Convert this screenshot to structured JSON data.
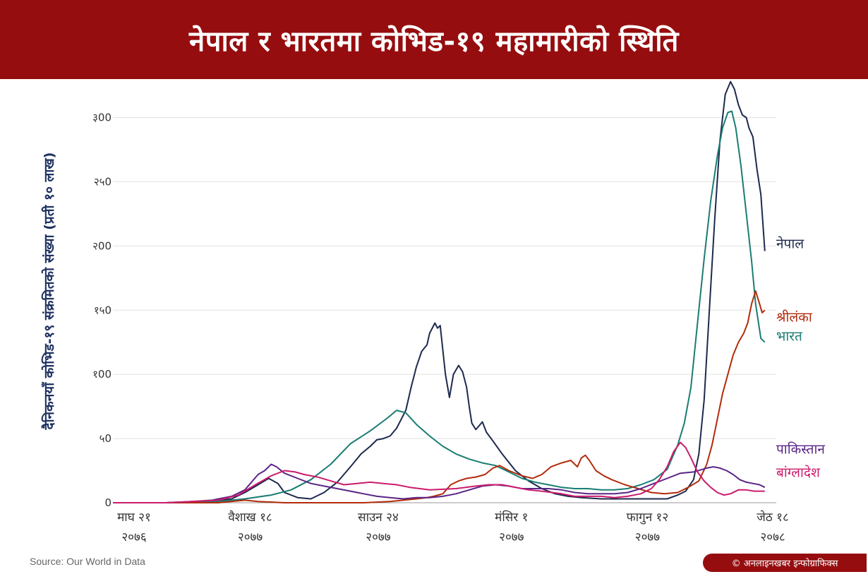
{
  "header": {
    "title": "नेपाल र भारतमा कोभिड-१९ महामारीको स्थिति"
  },
  "footer": {
    "source": "Source: Our World in Data",
    "credit": "© अनलाइनखबर इन्फोग्राफिक्स"
  },
  "chart_data": {
    "type": "line",
    "ylabel": "दैनिकनयाँ कोभिड-१९ संक्रमितको संख्या (प्रती १० लाख)",
    "ylim": [
      0,
      330
    ],
    "y_ticks": [
      {
        "value": 0,
        "label": "0"
      },
      {
        "value": 50,
        "label": "५0"
      },
      {
        "value": 100,
        "label": "१00"
      },
      {
        "value": 150,
        "label": "१५0"
      },
      {
        "value": 200,
        "label": "२00"
      },
      {
        "value": 250,
        "label": "२५0"
      },
      {
        "value": 300,
        "label": "३00"
      }
    ],
    "grid": true,
    "xlim": [
      0,
      500
    ],
    "x_ticks": [
      {
        "x": 0,
        "line1": "माघ २१",
        "line2": "२०७६"
      },
      {
        "x": 88,
        "line1": "वैशाख १८",
        "line2": "२०७७"
      },
      {
        "x": 185,
        "line1": "साउन २४",
        "line2": "२०७७"
      },
      {
        "x": 286,
        "line1": "मंसिर १",
        "line2": "२०७७"
      },
      {
        "x": 389,
        "line1": "फागुन १२",
        "line2": "२०७७"
      },
      {
        "x": 484,
        "line1": "जेठ १८",
        "line2": "२०७८"
      }
    ],
    "colors": {
      "nepal": "#1d2a4d",
      "india": "#1a7d72",
      "srilanka": "#b22c0c",
      "pakistan": "#5b2587",
      "bangladesh": "#cc1b6c"
    },
    "series": [
      {
        "key": "nepal",
        "name": "नेपाल",
        "label_pos": [
          513,
          202
        ],
        "points": [
          [
            0,
            0
          ],
          [
            40,
            0
          ],
          [
            70,
            1
          ],
          [
            90,
            3
          ],
          [
            100,
            8
          ],
          [
            110,
            14
          ],
          [
            118,
            19
          ],
          [
            125,
            15
          ],
          [
            130,
            8
          ],
          [
            140,
            4
          ],
          [
            150,
            3
          ],
          [
            160,
            8
          ],
          [
            170,
            16
          ],
          [
            180,
            28
          ],
          [
            188,
            38
          ],
          [
            195,
            44
          ],
          [
            200,
            49
          ],
          [
            205,
            50
          ],
          [
            210,
            52
          ],
          [
            215,
            58
          ],
          [
            222,
            72
          ],
          [
            226,
            90
          ],
          [
            230,
            106
          ],
          [
            234,
            118
          ],
          [
            238,
            123
          ],
          [
            240,
            132
          ],
          [
            244,
            140
          ],
          [
            246,
            136
          ],
          [
            248,
            138
          ],
          [
            252,
            100
          ],
          [
            255,
            82
          ],
          [
            258,
            100
          ],
          [
            262,
            107
          ],
          [
            265,
            102
          ],
          [
            268,
            90
          ],
          [
            270,
            75
          ],
          [
            272,
            62
          ],
          [
            275,
            57
          ],
          [
            280,
            63
          ],
          [
            283,
            55
          ],
          [
            288,
            48
          ],
          [
            295,
            38
          ],
          [
            305,
            25
          ],
          [
            315,
            17
          ],
          [
            325,
            11
          ],
          [
            335,
            7
          ],
          [
            345,
            5
          ],
          [
            355,
            4
          ],
          [
            370,
            3
          ],
          [
            385,
            3
          ],
          [
            400,
            3
          ],
          [
            410,
            3
          ],
          [
            420,
            3
          ],
          [
            428,
            6
          ],
          [
            434,
            9
          ],
          [
            440,
            18
          ],
          [
            444,
            38
          ],
          [
            448,
            80
          ],
          [
            452,
            150
          ],
          [
            456,
            220
          ],
          [
            460,
            282
          ],
          [
            464,
            318
          ],
          [
            468,
            328
          ],
          [
            471,
            322
          ],
          [
            474,
            310
          ],
          [
            477,
            302
          ],
          [
            480,
            300
          ],
          [
            482,
            292
          ],
          [
            485,
            285
          ],
          [
            488,
            260
          ],
          [
            491,
            240
          ],
          [
            494,
            196
          ]
        ]
      },
      {
        "key": "india",
        "name": "भारत",
        "label_pos": [
          513,
          130
        ],
        "points": [
          [
            0,
            0
          ],
          [
            50,
            0
          ],
          [
            80,
            1
          ],
          [
            100,
            3
          ],
          [
            120,
            6
          ],
          [
            135,
            10
          ],
          [
            150,
            18
          ],
          [
            165,
            30
          ],
          [
            180,
            46
          ],
          [
            195,
            56
          ],
          [
            208,
            66
          ],
          [
            215,
            72
          ],
          [
            222,
            70
          ],
          [
            230,
            61
          ],
          [
            240,
            52
          ],
          [
            250,
            44
          ],
          [
            260,
            38
          ],
          [
            270,
            34
          ],
          [
            280,
            31
          ],
          [
            290,
            29
          ],
          [
            300,
            24
          ],
          [
            310,
            19
          ],
          [
            320,
            16
          ],
          [
            330,
            14
          ],
          [
            340,
            12
          ],
          [
            350,
            11
          ],
          [
            360,
            11
          ],
          [
            370,
            10
          ],
          [
            380,
            10
          ],
          [
            390,
            11
          ],
          [
            400,
            14
          ],
          [
            410,
            18
          ],
          [
            420,
            26
          ],
          [
            428,
            45
          ],
          [
            433,
            62
          ],
          [
            438,
            90
          ],
          [
            443,
            140
          ],
          [
            448,
            190
          ],
          [
            453,
            235
          ],
          [
            458,
            270
          ],
          [
            462,
            292
          ],
          [
            466,
            304
          ],
          [
            469,
            305
          ],
          [
            472,
            292
          ],
          [
            476,
            262
          ],
          [
            480,
            225
          ],
          [
            484,
            188
          ],
          [
            487,
            155
          ],
          [
            491,
            128
          ],
          [
            494,
            125
          ]
        ]
      },
      {
        "key": "srilanka",
        "name": "श्रीलंका",
        "label_pos": [
          513,
          145
        ],
        "points": [
          [
            0,
            0
          ],
          [
            80,
            0
          ],
          [
            100,
            2
          ],
          [
            110,
            1
          ],
          [
            130,
            0
          ],
          [
            150,
            0
          ],
          [
            170,
            0
          ],
          [
            190,
            0
          ],
          [
            210,
            1
          ],
          [
            230,
            3
          ],
          [
            238,
            4
          ],
          [
            243,
            5
          ],
          [
            250,
            7
          ],
          [
            256,
            14
          ],
          [
            262,
            17
          ],
          [
            268,
            19
          ],
          [
            275,
            20
          ],
          [
            282,
            22
          ],
          [
            288,
            27
          ],
          [
            293,
            29
          ],
          [
            300,
            25
          ],
          [
            310,
            21
          ],
          [
            318,
            19
          ],
          [
            325,
            22
          ],
          [
            332,
            28
          ],
          [
            340,
            31
          ],
          [
            347,
            33
          ],
          [
            352,
            28
          ],
          [
            355,
            35
          ],
          [
            358,
            37
          ],
          [
            361,
            33
          ],
          [
            366,
            25
          ],
          [
            372,
            21
          ],
          [
            378,
            18
          ],
          [
            388,
            14
          ],
          [
            398,
            11
          ],
          [
            408,
            8
          ],
          [
            418,
            7
          ],
          [
            428,
            8
          ],
          [
            436,
            12
          ],
          [
            444,
            17
          ],
          [
            450,
            30
          ],
          [
            454,
            45
          ],
          [
            458,
            65
          ],
          [
            462,
            85
          ],
          [
            466,
            100
          ],
          [
            470,
            115
          ],
          [
            474,
            125
          ],
          [
            478,
            132
          ],
          [
            481,
            140
          ],
          [
            484,
            155
          ],
          [
            487,
            165
          ],
          [
            490,
            155
          ],
          [
            492,
            148
          ],
          [
            494,
            150
          ]
        ]
      },
      {
        "key": "pakistan",
        "name": "पाकिस्तान",
        "label_pos": [
          513,
          42
        ],
        "points": [
          [
            0,
            0
          ],
          [
            40,
            0
          ],
          [
            60,
            1
          ],
          [
            75,
            2
          ],
          [
            90,
            5
          ],
          [
            100,
            10
          ],
          [
            110,
            22
          ],
          [
            115,
            25
          ],
          [
            120,
            30
          ],
          [
            124,
            28
          ],
          [
            130,
            23
          ],
          [
            140,
            19
          ],
          [
            150,
            15
          ],
          [
            160,
            13
          ],
          [
            170,
            11
          ],
          [
            180,
            9
          ],
          [
            190,
            7
          ],
          [
            200,
            5
          ],
          [
            210,
            4
          ],
          [
            220,
            3
          ],
          [
            230,
            4
          ],
          [
            240,
            4
          ],
          [
            250,
            5
          ],
          [
            260,
            7
          ],
          [
            270,
            10
          ],
          [
            280,
            13
          ],
          [
            290,
            14
          ],
          [
            300,
            13
          ],
          [
            310,
            11
          ],
          [
            320,
            11
          ],
          [
            330,
            11
          ],
          [
            340,
            10
          ],
          [
            350,
            8
          ],
          [
            360,
            7
          ],
          [
            370,
            7
          ],
          [
            380,
            7
          ],
          [
            390,
            8
          ],
          [
            400,
            11
          ],
          [
            410,
            15
          ],
          [
            420,
            19
          ],
          [
            430,
            23
          ],
          [
            440,
            24
          ],
          [
            450,
            27
          ],
          [
            455,
            28
          ],
          [
            460,
            27
          ],
          [
            465,
            25
          ],
          [
            470,
            22
          ],
          [
            475,
            18
          ],
          [
            480,
            16
          ],
          [
            485,
            15
          ],
          [
            490,
            14
          ],
          [
            494,
            12
          ]
        ]
      },
      {
        "key": "bangladesh",
        "name": "बांग्लादेश",
        "label_pos": [
          513,
          24
        ],
        "points": [
          [
            0,
            0
          ],
          [
            40,
            0
          ],
          [
            60,
            1
          ],
          [
            80,
            2
          ],
          [
            95,
            6
          ],
          [
            108,
            14
          ],
          [
            120,
            21
          ],
          [
            130,
            25
          ],
          [
            138,
            24
          ],
          [
            145,
            22
          ],
          [
            155,
            20
          ],
          [
            165,
            17
          ],
          [
            175,
            14
          ],
          [
            185,
            15
          ],
          [
            195,
            16
          ],
          [
            205,
            15
          ],
          [
            215,
            14
          ],
          [
            225,
            12
          ],
          [
            240,
            10
          ],
          [
            260,
            11
          ],
          [
            275,
            13
          ],
          [
            285,
            14
          ],
          [
            295,
            14
          ],
          [
            305,
            12
          ],
          [
            315,
            10
          ],
          [
            325,
            9
          ],
          [
            340,
            7
          ],
          [
            350,
            5
          ],
          [
            360,
            5
          ],
          [
            370,
            5
          ],
          [
            380,
            4
          ],
          [
            390,
            5
          ],
          [
            400,
            7
          ],
          [
            408,
            11
          ],
          [
            414,
            18
          ],
          [
            420,
            28
          ],
          [
            425,
            40
          ],
          [
            430,
            47
          ],
          [
            434,
            43
          ],
          [
            438,
            35
          ],
          [
            443,
            24
          ],
          [
            448,
            17
          ],
          [
            453,
            12
          ],
          [
            458,
            8
          ],
          [
            463,
            6
          ],
          [
            468,
            7
          ],
          [
            474,
            10
          ],
          [
            480,
            10
          ],
          [
            486,
            9
          ],
          [
            494,
            9
          ]
        ]
      }
    ]
  }
}
